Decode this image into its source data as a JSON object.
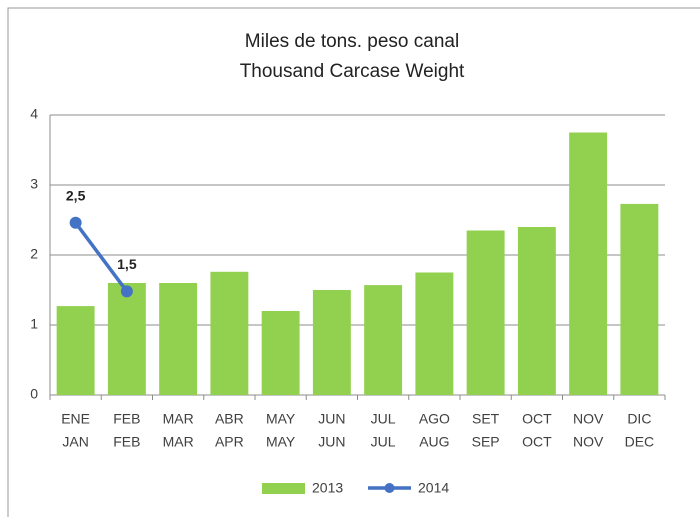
{
  "chart_data": {
    "type": "bar+line",
    "title": "Miles de tons. peso canal",
    "subtitle": "Thousand Carcase Weight",
    "categories": [
      [
        "ENE",
        "JAN"
      ],
      [
        "FEB",
        "FEB"
      ],
      [
        "MAR",
        "MAR"
      ],
      [
        "ABR",
        "APR"
      ],
      [
        "MAY",
        "MAY"
      ],
      [
        "JUN",
        "JUN"
      ],
      [
        "JUL",
        "JUL"
      ],
      [
        "AGO",
        "AUG"
      ],
      [
        "SET",
        "SEP"
      ],
      [
        "OCT",
        "OCT"
      ],
      [
        "NOV",
        "NOV"
      ],
      [
        "DIC",
        "DEC"
      ]
    ],
    "series": [
      {
        "name": "2013",
        "type": "bar",
        "color": "#92d050",
        "values": [
          1.27,
          1.6,
          1.6,
          1.76,
          1.2,
          1.5,
          1.57,
          1.75,
          2.35,
          2.4,
          3.75,
          2.73
        ]
      },
      {
        "name": "2014",
        "type": "line",
        "color": "#4472c4",
        "values": [
          2.46,
          1.48,
          null,
          null,
          null,
          null,
          null,
          null,
          null,
          null,
          null,
          null
        ],
        "value_labels": [
          "2,5",
          "1,5",
          null,
          null,
          null,
          null,
          null,
          null,
          null,
          null,
          null,
          null
        ]
      }
    ],
    "ylim": [
      0,
      4
    ],
    "yticks": [
      0,
      1,
      2,
      3,
      4
    ],
    "grid": true,
    "legend": "bottom"
  }
}
